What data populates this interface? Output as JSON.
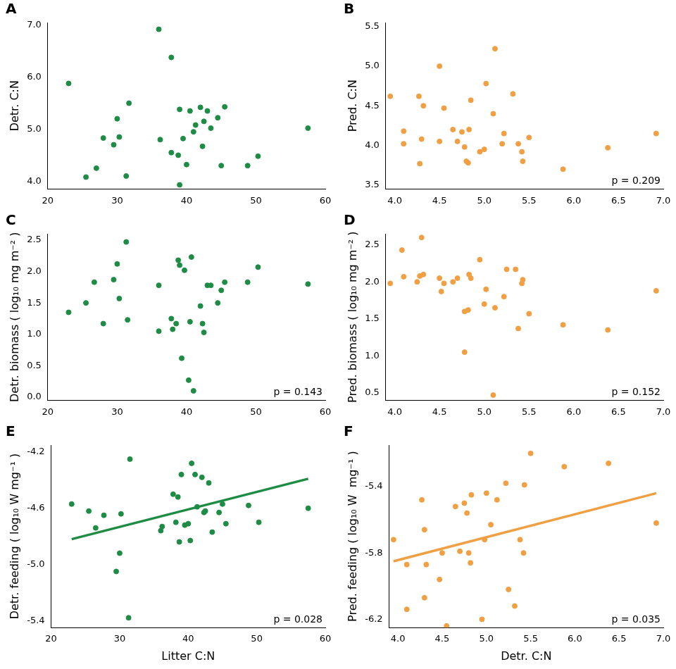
{
  "chart_data": [
    {
      "type": "scatter",
      "title": "A",
      "y_label": "Detr. C:N",
      "color": "#1e8c45",
      "x": [
        23,
        25.5,
        27,
        28,
        29.5,
        30,
        30.3,
        31.3,
        31.7,
        36,
        36.2,
        37.8,
        37.8,
        38.8,
        39,
        39,
        39.5,
        40,
        40.5,
        41,
        41.3,
        42,
        42.3,
        42.5,
        43,
        43.5,
        44.5,
        45,
        45.5,
        48.8,
        50.3,
        57.5
      ],
      "values": [
        5.88,
        4.08,
        4.25,
        4.83,
        4.7,
        5.2,
        4.85,
        4.1,
        5.5,
        6.92,
        4.8,
        6.38,
        4.55,
        4.5,
        5.38,
        3.93,
        4.82,
        4.32,
        5.35,
        4.95,
        5.08,
        5.42,
        4.67,
        5.15,
        5.35,
        5.02,
        5.22,
        4.3,
        5.43,
        4.3,
        4.48,
        5.02
      ],
      "xlim": [
        20,
        60
      ],
      "xticks": [
        20,
        30,
        40,
        50,
        60
      ],
      "ylim": [
        3.85,
        7.05
      ],
      "yticks": [
        {
          "value": 4,
          "label": "4.0"
        },
        {
          "value": 5,
          "label": "5.0"
        },
        {
          "value": 6,
          "label": "6.0"
        },
        {
          "value": 7,
          "label": "7.0"
        }
      ]
    },
    {
      "type": "scatter",
      "title": "B",
      "y_label": "Pred. C:N",
      "color": "#f0a043",
      "annotation": "p = 0.209",
      "x": [
        3.95,
        4.1,
        4.1,
        4.27,
        4.28,
        4.3,
        4.32,
        4.5,
        4.5,
        4.55,
        4.65,
        4.7,
        4.75,
        4.78,
        4.8,
        4.82,
        4.83,
        4.85,
        4.95,
        5.0,
        5.02,
        5.1,
        5.12,
        5.2,
        5.22,
        5.32,
        5.38,
        5.42,
        5.43,
        5.5,
        5.88,
        6.38,
        6.92
      ],
      "values": [
        4.62,
        4.02,
        4.18,
        4.62,
        3.77,
        4.08,
        4.5,
        4.05,
        5.0,
        4.47,
        4.2,
        4.05,
        4.17,
        3.98,
        3.8,
        3.78,
        4.2,
        4.57,
        3.92,
        3.95,
        4.78,
        4.4,
        5.22,
        4.02,
        4.15,
        4.65,
        4.02,
        3.92,
        3.8,
        4.1,
        3.7,
        3.97,
        4.15
      ],
      "xlim": [
        3.9,
        7.0
      ],
      "xticks": [
        {
          "value": 4,
          "label": "4.0"
        },
        4.5,
        {
          "value": 5,
          "label": "5.0"
        },
        5.5,
        {
          "value": 6,
          "label": "6.0"
        },
        6.5,
        {
          "value": 7,
          "label": "7.0"
        }
      ],
      "ylim": [
        3.45,
        5.55
      ],
      "yticks": [
        3.5,
        {
          "value": 4,
          "label": "4.0"
        },
        4.5,
        {
          "value": 5,
          "label": "5.0"
        },
        5.5
      ]
    },
    {
      "type": "scatter",
      "title": "C",
      "y_label": "Detr. biomass ( log₁₀ mg m⁻² )",
      "color": "#1e8c45",
      "annotation": "p = 0.143",
      "x": [
        23,
        25.5,
        26.7,
        28,
        29.5,
        30,
        30.3,
        31.3,
        31.5,
        36,
        36,
        37.8,
        38,
        38.5,
        38.8,
        39,
        39.3,
        39.7,
        40.3,
        40.5,
        40.7,
        41,
        42,
        42.3,
        42.5,
        43,
        43.5,
        44.5,
        45,
        45.5,
        48.8,
        50.3,
        57.5
      ],
      "values": [
        1.35,
        1.5,
        1.83,
        1.17,
        1.87,
        2.12,
        1.57,
        2.47,
        1.23,
        1.05,
        1.78,
        1.25,
        1.08,
        1.17,
        2.18,
        2.1,
        0.62,
        2.02,
        0.27,
        1.2,
        2.23,
        0.1,
        1.45,
        1.17,
        1.03,
        1.78,
        1.78,
        1.5,
        1.7,
        1.83,
        1.83,
        2.07,
        1.8
      ],
      "xlim": [
        20,
        60
      ],
      "xticks": [
        20,
        30,
        40,
        50,
        60
      ],
      "ylim": [
        -0.05,
        2.6
      ],
      "yticks": [
        {
          "value": 0,
          "label": "0.0"
        },
        0.5,
        {
          "value": 1,
          "label": "1.0"
        },
        1.5,
        {
          "value": 2,
          "label": "2.0"
        },
        2.5
      ]
    },
    {
      "type": "scatter",
      "title": "D",
      "y_label": "Pred. biomass ( log₁₀ mg m⁻² )",
      "color": "#f0a043",
      "annotation": "p = 0.152",
      "x": [
        3.95,
        4.08,
        4.1,
        4.25,
        4.28,
        4.3,
        4.32,
        4.5,
        4.52,
        4.55,
        4.65,
        4.7,
        4.78,
        4.78,
        4.82,
        4.83,
        4.85,
        4.95,
        5.0,
        5.02,
        5.1,
        5.12,
        5.22,
        5.25,
        5.35,
        5.38,
        5.42,
        5.43,
        5.5,
        5.88,
        6.38,
        6.92
      ],
      "values": [
        1.98,
        2.43,
        2.07,
        2.0,
        2.08,
        2.6,
        2.1,
        2.05,
        1.87,
        1.98,
        2.0,
        2.05,
        1.05,
        1.6,
        1.62,
        2.1,
        2.05,
        2.3,
        1.7,
        1.9,
        0.47,
        1.65,
        1.8,
        2.17,
        2.17,
        1.37,
        1.98,
        2.03,
        1.57,
        1.42,
        1.35,
        1.88
      ],
      "xlim": [
        3.9,
        7.0
      ],
      "xticks": [
        {
          "value": 4,
          "label": "4.0"
        },
        4.5,
        {
          "value": 5,
          "label": "5.0"
        },
        5.5,
        {
          "value": 6,
          "label": "6.0"
        },
        6.5,
        {
          "value": 7,
          "label": "7.0"
        }
      ],
      "ylim": [
        0.4,
        2.65
      ],
      "yticks": [
        0.5,
        {
          "value": 1,
          "label": "1.0"
        },
        1.5,
        {
          "value": 2,
          "label": "2.0"
        },
        2.5
      ]
    },
    {
      "type": "scatter",
      "title": "E",
      "y_label": "Detr. feeding ( log₁₀ W mg⁻¹ )",
      "x_label": "Litter C:N",
      "color": "#1e8c45",
      "annotation": "p = 0.028",
      "x": [
        23,
        25.5,
        26.5,
        27.7,
        29.5,
        30,
        30.2,
        31.3,
        31.5,
        36,
        36.2,
        37.8,
        38.2,
        38.5,
        38.7,
        39,
        39.5,
        40,
        40.3,
        40.5,
        41,
        41.3,
        42,
        42.3,
        42.5,
        43,
        43.5,
        44.5,
        45,
        45.5,
        48.8,
        50.3,
        57.5
      ],
      "values": [
        -4.57,
        -4.62,
        -4.74,
        -4.65,
        -5.05,
        -4.92,
        -4.64,
        -5.38,
        -4.25,
        -4.76,
        -4.73,
        -4.5,
        -4.7,
        -4.52,
        -4.84,
        -4.36,
        -4.72,
        -4.71,
        -4.83,
        -4.28,
        -4.36,
        -4.59,
        -4.38,
        -4.63,
        -4.62,
        -4.42,
        -4.77,
        -4.63,
        -4.57,
        -4.71,
        -4.58,
        -4.7,
        -4.6
      ],
      "fit": {
        "x": [
          23,
          57.5
        ],
        "values": [
          -4.82,
          -4.39
        ]
      },
      "xlim": [
        20,
        60
      ],
      "xticks": [
        20,
        30,
        40,
        50,
        60
      ],
      "ylim": [
        -5.45,
        -4.15
      ],
      "yticks": [
        -5.4,
        {
          "value": -5,
          "label": "-5.0"
        },
        -4.6,
        -4.2
      ]
    },
    {
      "type": "scatter",
      "title": "F",
      "y_label": "Pred. feeding ( log₁₀ W  mg⁻¹ )",
      "x_label": "Detr. C:N",
      "color": "#f0a043",
      "annotation": "p = 0.035",
      "x": [
        3.95,
        4.1,
        4.1,
        4.27,
        4.3,
        4.3,
        4.32,
        4.47,
        4.5,
        4.55,
        4.65,
        4.7,
        4.75,
        4.78,
        4.8,
        4.82,
        4.83,
        4.95,
        4.98,
        5.0,
        5.05,
        5.12,
        5.22,
        5.25,
        5.32,
        5.38,
        5.42,
        5.43,
        5.5,
        5.88,
        6.38,
        6.92
      ],
      "values": [
        -5.72,
        -5.87,
        -6.14,
        -5.48,
        -5.66,
        -6.07,
        -5.87,
        -5.96,
        -5.8,
        -6.24,
        -5.52,
        -5.79,
        -5.5,
        -5.56,
        -5.8,
        -5.86,
        -5.45,
        -6.2,
        -5.72,
        -5.44,
        -5.63,
        -5.48,
        -5.38,
        -6.02,
        -6.12,
        -5.72,
        -5.8,
        -5.39,
        -5.2,
        -5.28,
        -5.26,
        -5.62
      ],
      "fit": {
        "x": [
          3.95,
          6.92
        ],
        "values": [
          -5.85,
          -5.44
        ]
      },
      "xlim": [
        3.9,
        7.0
      ],
      "xticks": [
        {
          "value": 4,
          "label": "4.0"
        },
        4.5,
        {
          "value": 5,
          "label": "5.0"
        },
        5.5,
        {
          "value": 6,
          "label": "6.0"
        },
        6.5,
        {
          "value": 7,
          "label": "7.0"
        }
      ],
      "ylim": [
        -6.25,
        -5.15
      ],
      "yticks": [
        -6.2,
        -5.8,
        -5.4
      ]
    }
  ]
}
